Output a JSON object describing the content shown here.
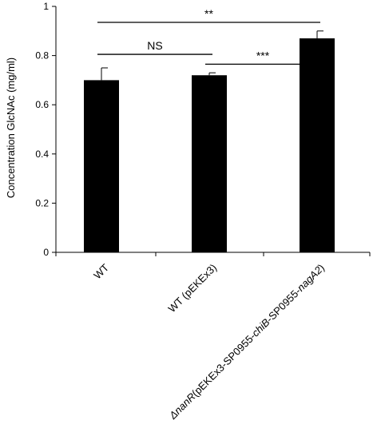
{
  "chart_data": {
    "type": "bar",
    "categories": [
      {
        "parts": [
          {
            "text": "WT",
            "italic": false
          }
        ]
      },
      {
        "parts": [
          {
            "text": "WT (pEKEx3)",
            "italic": false
          }
        ]
      },
      {
        "parts": [
          {
            "text": "ΔnanR",
            "italic": true
          },
          {
            "text": "(pEKEx3-SP0955-",
            "italic": false
          },
          {
            "text": "chiB",
            "italic": true
          },
          {
            "text": "-SP0955-",
            "italic": false
          },
          {
            "text": "nagA2",
            "italic": true
          },
          {
            "text": ")",
            "italic": false
          }
        ]
      }
    ],
    "values": [
      0.7,
      0.72,
      0.87
    ],
    "errors": [
      0.05,
      0.01,
      0.03
    ],
    "ylabel": "Concentration GlcNAc (mg/ml)",
    "ylim": [
      0,
      1
    ],
    "yticks": [
      {
        "value": 0,
        "label": "0"
      },
      {
        "value": 0.2,
        "label": "0.2"
      },
      {
        "value": 0.4,
        "label": "0.4"
      },
      {
        "value": 0.6,
        "label": "0.6"
      },
      {
        "value": 0.8,
        "label": "0.8"
      },
      {
        "value": 1,
        "label": "1"
      }
    ],
    "grid": false,
    "bar_color": "#000000",
    "significance": [
      {
        "from": 0,
        "to": 1,
        "label": "NS",
        "y": 0.805
      },
      {
        "from": 1,
        "to": 2,
        "label": "***",
        "y": 0.765
      },
      {
        "from": 0,
        "to": 2,
        "label": "**",
        "y": 0.935
      }
    ]
  }
}
